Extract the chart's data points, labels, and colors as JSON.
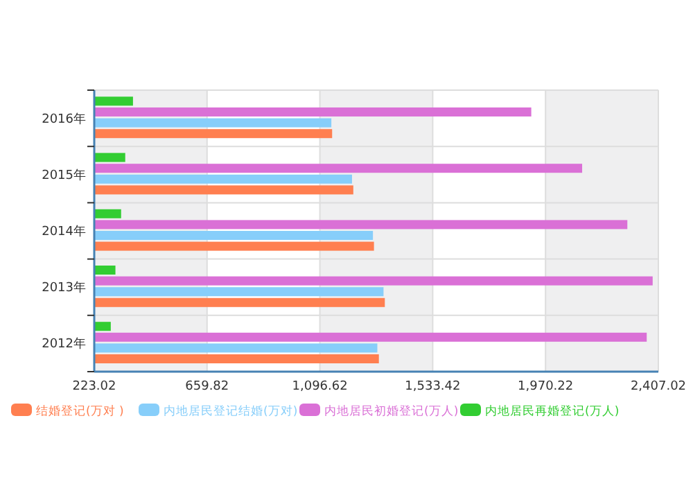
{
  "chart_data": {
    "type": "bar",
    "orientation": "horizontal",
    "categories": [
      "2016年",
      "2015年",
      "2014年",
      "2013年",
      "2012年"
    ],
    "series": [
      {
        "name": "结婚登记(万对 )",
        "color": "#ff7f50",
        "values": [
          1144,
          1226,
          1306,
          1348,
          1325
        ]
      },
      {
        "name": "内地居民登记结婚(万对)",
        "color": "#87cefa",
        "values": [
          1141,
          1221,
          1302,
          1343,
          1319
        ]
      },
      {
        "name": "内地居民初婚登记(万人)",
        "color": "#da70d6",
        "values": [
          1915,
          2112,
          2287,
          2385,
          2362
        ]
      },
      {
        "name": "内地居民再婚登记(万人)",
        "color": "#32cd32",
        "values": [
          373,
          343,
          327,
          305,
          287
        ]
      }
    ],
    "xlim": [
      223.02,
      2407.02
    ],
    "xticks": [
      223.02,
      659.82,
      {
        "value": 1096.62,
        "label": "1,096.62"
      },
      {
        "value": 1533.42,
        "label": "1,533.42"
      },
      {
        "value": 1970.22,
        "label": "1,970.22"
      },
      {
        "value": 2407.02,
        "label": "2,407.02"
      }
    ],
    "grid": true,
    "legend": "bottom"
  }
}
